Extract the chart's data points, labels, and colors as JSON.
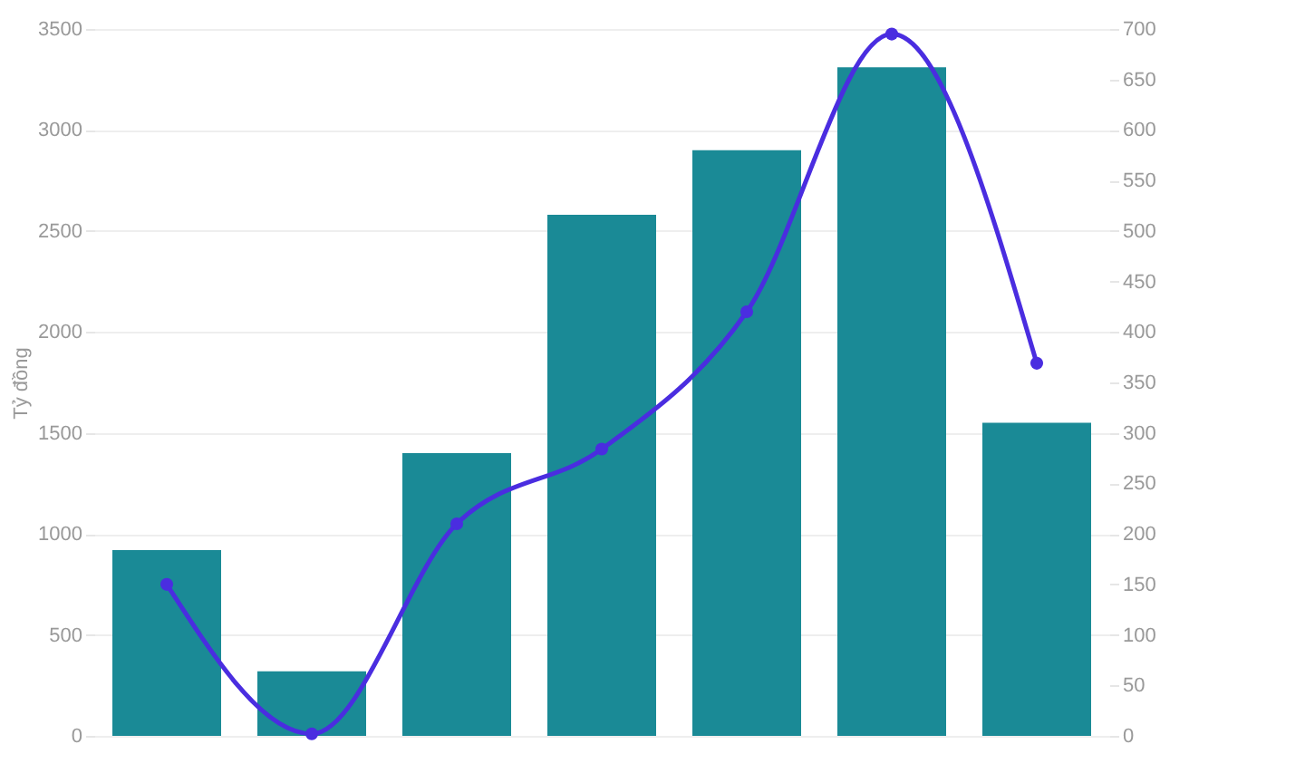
{
  "chart_data": {
    "type": "bar",
    "ylabel": "Tỷ đồng",
    "categories": [
      null,
      null,
      null,
      null,
      null,
      null,
      null
    ],
    "series": [
      {
        "color": "#1a8a96",
        "values": [
          920,
          320,
          1400,
          2580,
          2900,
          3310,
          1550
        ]
      },
      {
        "type": "line",
        "axis": "y2",
        "color": "#4a2de0",
        "marker": "circle",
        "values": [
          150,
          2,
          210,
          284,
          420,
          695,
          369
        ]
      }
    ],
    "ylim": [
      0,
      3500
    ],
    "yticks": [
      0,
      500,
      1000,
      1500,
      2000,
      2500,
      3000,
      3500
    ],
    "y2lim": [
      0,
      700
    ],
    "y2ticks": [
      0,
      50,
      100,
      150,
      200,
      250,
      300,
      350,
      400,
      450,
      500,
      550,
      600,
      650,
      700
    ],
    "grid": "y"
  }
}
